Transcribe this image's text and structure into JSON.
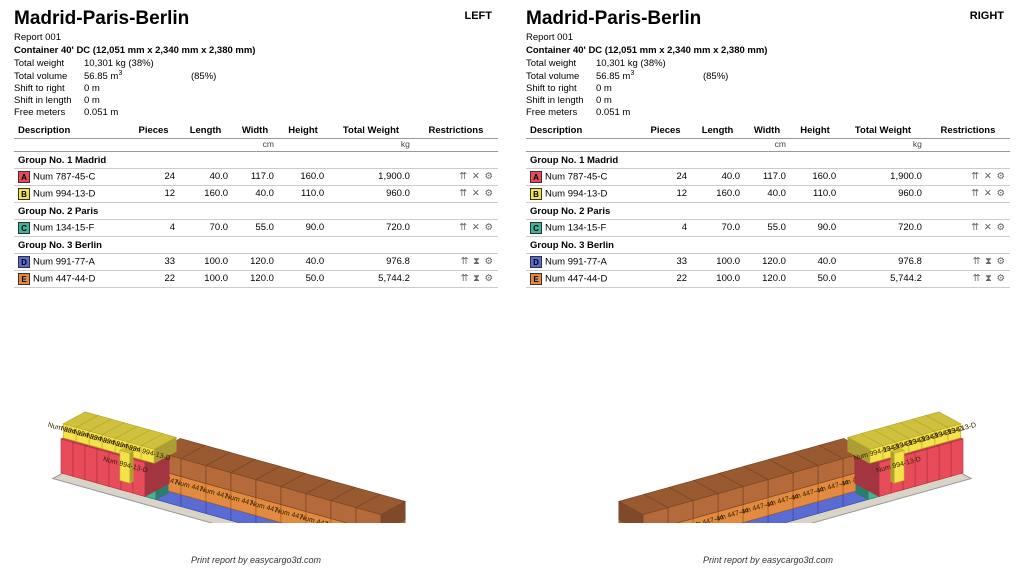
{
  "report": {
    "title": "Madrid-Paris-Berlin",
    "report_no": "Report 001",
    "container_line": "Container 40' DC (12,051 mm x 2,340 mm x 2,380 mm)",
    "meta": [
      [
        "Total weight",
        "10,301 kg (38%)"
      ],
      [
        "Total volume",
        "56.85 m³ (85%)"
      ],
      [
        "Shift to right",
        "0 m"
      ],
      [
        "Shift in length",
        "0 m"
      ],
      [
        "Free meters",
        "0.051 m"
      ]
    ],
    "footer": "Print report by easycargo3d.com"
  },
  "views": [
    {
      "side": "LEFT",
      "mirror": false
    },
    {
      "side": "RIGHT",
      "mirror": true
    }
  ],
  "table": {
    "headers": [
      "Description",
      "Pieces",
      "Length",
      "Width",
      "Height",
      "Total Weight",
      "Restrictions"
    ],
    "units": [
      "",
      "",
      "",
      "cm",
      "",
      "kg",
      ""
    ],
    "groups": [
      {
        "name": "Group No. 1 Madrid",
        "rows": [
          {
            "tag": "A",
            "color": "#e84c5a",
            "desc": "Num 787-45-C",
            "pieces": 24,
            "length": "40.0",
            "width": "117.0",
            "height": "160.0",
            "tw": "1,900.0",
            "icons": "⇈ ✕ ⚙"
          },
          {
            "tag": "B",
            "color": "#f3e24a",
            "desc": "Num 994-13-D",
            "pieces": 12,
            "length": "160.0",
            "width": "40.0",
            "height": "110.0",
            "tw": "960.0",
            "icons": "⇈ ✕ ⚙"
          }
        ]
      },
      {
        "name": "Group No. 2 Paris",
        "rows": [
          {
            "tag": "C",
            "color": "#3fb39a",
            "desc": "Num 134-15-F",
            "pieces": 4,
            "length": "70.0",
            "width": "55.0",
            "height": "90.0",
            "tw": "720.0",
            "icons": "⇈ ✕ ⚙"
          }
        ]
      },
      {
        "name": "Group No. 3 Berlin",
        "rows": [
          {
            "tag": "D",
            "color": "#5a6bd4",
            "desc": "Num 991-77-A",
            "pieces": 33,
            "length": "100.0",
            "width": "120.0",
            "height": "40.0",
            "tw": "976.8",
            "icons": "⇈ ⧗ ⚙"
          },
          {
            "tag": "E",
            "color": "#e28a3f",
            "desc": "Num 447-44-D",
            "pieces": 22,
            "length": "100.0",
            "width": "120.0",
            "height": "50.0",
            "tw": "5,744.2",
            "icons": "⇈ ⧗ ⚙"
          }
        ]
      }
    ]
  },
  "viz": {
    "base_fill": "#d8d4c8",
    "base_stroke": "#999",
    "cells": {
      "pink": {
        "fill": "#e84c5a",
        "stroke": "#b03040"
      },
      "yellow": {
        "fill": "#f3e24a",
        "stroke": "#b8a820"
      },
      "orange": {
        "fill": "#e28a3f",
        "stroke": "#a45a1e"
      },
      "brown": {
        "fill": "#b46a3a",
        "stroke": "#7a4420"
      },
      "blue": {
        "fill": "#5a6bd4",
        "stroke": "#3a4aa0"
      },
      "teal": {
        "fill": "#3fb39a",
        "stroke": "#2a7a68"
      }
    },
    "label_color": "#332200",
    "label_font_size": 7
  }
}
